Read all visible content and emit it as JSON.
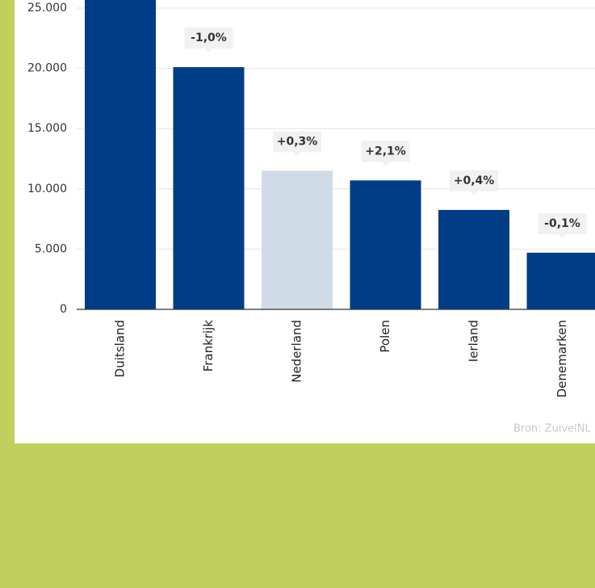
{
  "chart_data": {
    "type": "bar",
    "categories": [
      "Duitsland",
      "Frankrijk",
      "Nederland",
      "Polen",
      "Ierland",
      "Denemarken"
    ],
    "values": [
      26000,
      20100,
      11500,
      10700,
      8250,
      4700
    ],
    "colors": [
      "#003d86",
      "#003d86",
      "#d0dbe8",
      "#003d86",
      "#003d86",
      "#003d86"
    ],
    "annotations": [
      null,
      "-1,0%",
      "+0,3%",
      "+2,1%",
      "+0,4%",
      "-0,1%"
    ],
    "ylim": [
      0,
      25000
    ],
    "yticks": [
      0,
      {
        "value": 5000,
        "label": "5.000"
      },
      {
        "value": 10000,
        "label": "10.000"
      },
      {
        "value": 15000,
        "label": "15.000"
      },
      {
        "value": 20000,
        "label": "20.000"
      },
      {
        "value": 25000,
        "label": "25.000"
      }
    ],
    "grid": true,
    "source": "Bron: ZuivelNL"
  }
}
